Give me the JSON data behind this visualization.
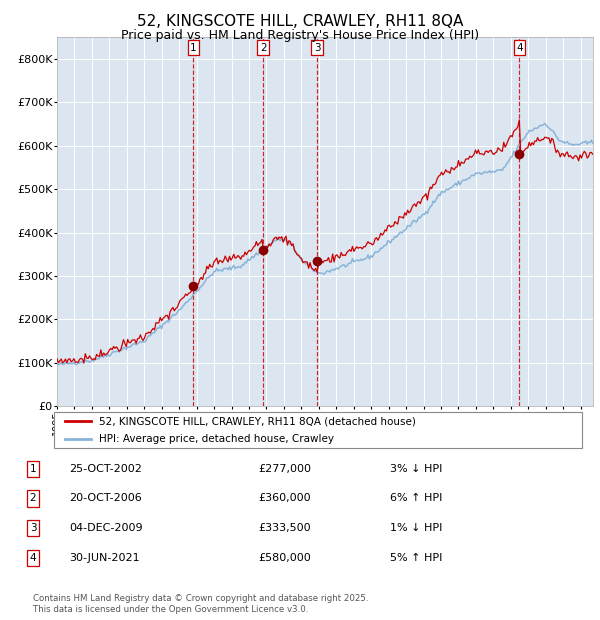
{
  "title": "52, KINGSCOTE HILL, CRAWLEY, RH11 8QA",
  "subtitle": "Price paid vs. HM Land Registry's House Price Index (HPI)",
  "title_fontsize": 11,
  "subtitle_fontsize": 9,
  "background_color": "#ffffff",
  "plot_bg_color": "#dce6f0",
  "grid_color": "#ffffff",
  "legend_label_red": "52, KINGSCOTE HILL, CRAWLEY, RH11 8QA (detached house)",
  "legend_label_blue": "HPI: Average price, detached house, Crawley",
  "footer": "Contains HM Land Registry data © Crown copyright and database right 2025.\nThis data is licensed under the Open Government Licence v3.0.",
  "transactions": [
    {
      "num": 1,
      "date": "25-OCT-2002",
      "price": 277000,
      "pct": "3%",
      "dir": "↓",
      "year": 2002.82
    },
    {
      "num": 2,
      "date": "20-OCT-2006",
      "price": 360000,
      "pct": "6%",
      "dir": "↑",
      "year": 2006.82
    },
    {
      "num": 3,
      "date": "04-DEC-2009",
      "price": 333500,
      "pct": "1%",
      "dir": "↓",
      "year": 2009.92
    },
    {
      "num": 4,
      "date": "30-JUN-2021",
      "price": 580000,
      "pct": "5%",
      "dir": "↑",
      "year": 2021.5
    }
  ],
  "hpi_color": "#89b4d9",
  "price_color": "#cc0000",
  "vline_color": "#cc0000",
  "dot_color": "#880000",
  "ylim": [
    0,
    850000
  ],
  "xlim_start": 1995.0,
  "xlim_end": 2025.7,
  "yticks": [
    0,
    100000,
    200000,
    300000,
    400000,
    500000,
    600000,
    700000,
    800000
  ],
  "ytick_labels": [
    "£0",
    "£100K",
    "£200K",
    "£300K",
    "£400K",
    "£500K",
    "£600K",
    "£700K",
    "£800K"
  ]
}
